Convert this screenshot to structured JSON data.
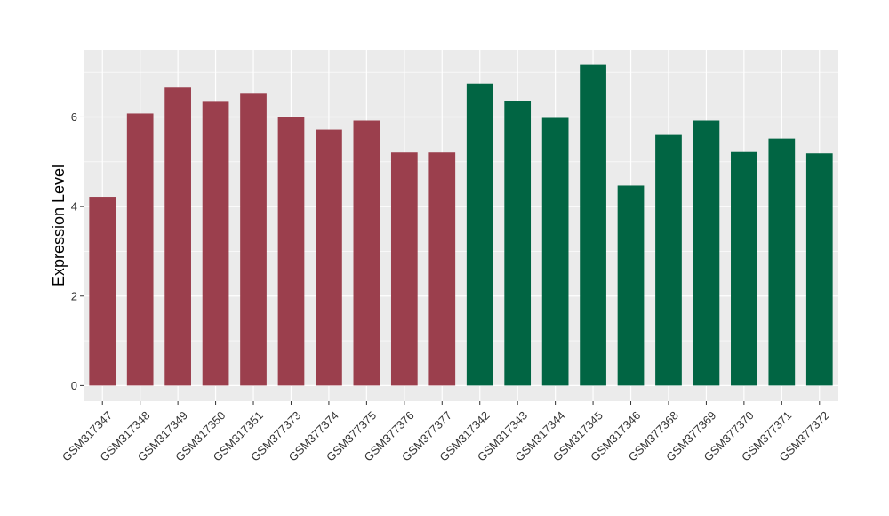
{
  "chart_data": {
    "type": "bar",
    "ylabel": "Expression Level",
    "xlabel": "",
    "ylim": [
      -0.35,
      7.5
    ],
    "yticks": [
      0,
      2,
      4,
      6
    ],
    "grid": true,
    "colors": {
      "group_a": "#9B3F4D",
      "group_b": "#016543",
      "panel": "#EBEBEB",
      "grid": "#FFFFFF"
    },
    "categories": [
      "GSM317347",
      "GSM317348",
      "GSM317349",
      "GSM317350",
      "GSM317351",
      "GSM377373",
      "GSM377374",
      "GSM377375",
      "GSM377376",
      "GSM377377",
      "GSM317342",
      "GSM317343",
      "GSM317344",
      "GSM317345",
      "GSM317346",
      "GSM377368",
      "GSM377369",
      "GSM377370",
      "GSM377371",
      "GSM377372"
    ],
    "values": [
      4.22,
      6.08,
      6.66,
      6.34,
      6.52,
      6.0,
      5.72,
      5.92,
      5.21,
      5.21,
      6.75,
      6.36,
      5.98,
      7.17,
      4.47,
      5.6,
      5.92,
      5.22,
      5.52,
      5.19
    ],
    "groups": [
      "a",
      "a",
      "a",
      "a",
      "a",
      "a",
      "a",
      "a",
      "a",
      "a",
      "b",
      "b",
      "b",
      "b",
      "b",
      "b",
      "b",
      "b",
      "b",
      "b"
    ]
  }
}
